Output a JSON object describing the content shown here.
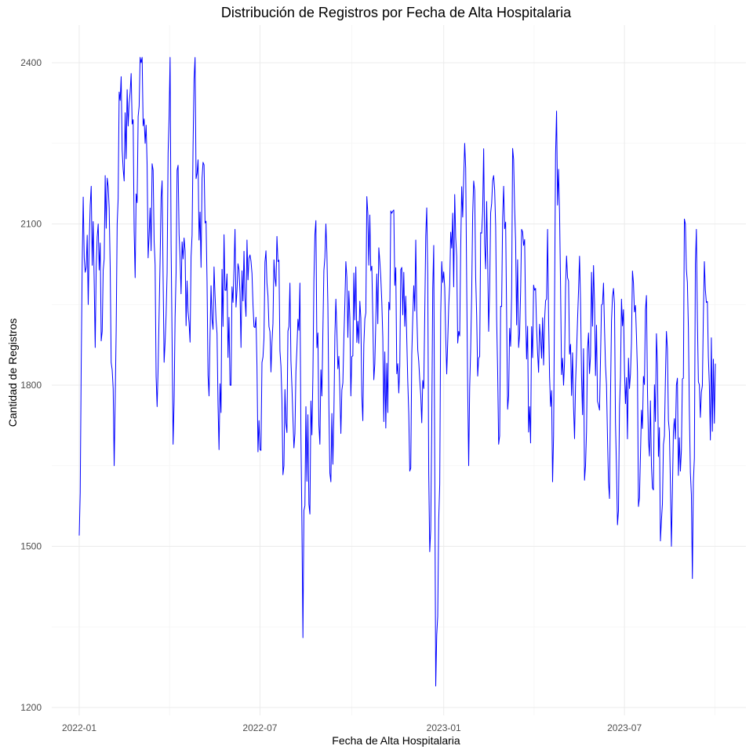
{
  "chart_data": {
    "type": "line",
    "title": "Distribución de Registros por Fecha de Alta Hospitalaria",
    "xlabel": "Fecha de Alta Hospitalaria",
    "ylabel": "Cantidad de Registros",
    "x_range": [
      "2022-01-01",
      "2023-09-30"
    ],
    "x_tick_labels": [
      "2022-01",
      "2022-07",
      "2023-01",
      "2023-07"
    ],
    "x_tick_dates": [
      "2022-01-01",
      "2022-07-01",
      "2023-01-01",
      "2023-07-01"
    ],
    "ylim": [
      1200,
      2420
    ],
    "y_ticks": [
      1200,
      1500,
      1800,
      2100,
      2400
    ],
    "grid": true,
    "series_color": "#0000ff",
    "series": [
      {
        "frequency": "daily",
        "start": "2022-01-01",
        "end": "2023-09-30",
        "keypoints": [
          [
            "2022-01-01",
            1520
          ],
          [
            "2022-01-02",
            1600
          ],
          [
            "2022-01-03",
            1840
          ],
          [
            "2022-01-05",
            2150
          ],
          [
            "2022-01-07",
            2010
          ],
          [
            "2022-01-10",
            1950
          ],
          [
            "2022-01-13",
            2170
          ],
          [
            "2022-01-17",
            1870
          ],
          [
            "2022-01-20",
            2100
          ],
          [
            "2022-01-24",
            1900
          ],
          [
            "2022-01-27",
            2190
          ],
          [
            "2022-02-01",
            2020
          ],
          [
            "2022-02-05",
            1650
          ],
          [
            "2022-02-08",
            2100
          ],
          [
            "2022-02-11",
            2330
          ],
          [
            "2022-02-15",
            2180
          ],
          [
            "2022-02-18",
            2350
          ],
          [
            "2022-02-22",
            2380
          ],
          [
            "2022-02-26",
            2000
          ],
          [
            "2022-03-01",
            2300
          ],
          [
            "2022-03-04",
            2400
          ],
          [
            "2022-03-08",
            2250
          ],
          [
            "2022-03-12",
            2080
          ],
          [
            "2022-03-16",
            2200
          ],
          [
            "2022-03-20",
            1760
          ],
          [
            "2022-03-24",
            2150
          ],
          [
            "2022-03-28",
            1880
          ],
          [
            "2022-04-01",
            2300
          ],
          [
            "2022-04-02",
            2410
          ],
          [
            "2022-04-05",
            1690
          ],
          [
            "2022-04-09",
            2200
          ],
          [
            "2022-04-13",
            1970
          ],
          [
            "2022-04-17",
            2050
          ],
          [
            "2022-04-22",
            1880
          ],
          [
            "2022-04-26",
            2370
          ],
          [
            "2022-05-01",
            2070
          ],
          [
            "2022-05-06",
            2210
          ],
          [
            "2022-05-11",
            1780
          ],
          [
            "2022-05-16",
            2020
          ],
          [
            "2022-05-21",
            1680
          ],
          [
            "2022-05-26",
            2080
          ],
          [
            "2022-06-01",
            1800
          ],
          [
            "2022-06-06",
            2090
          ],
          [
            "2022-06-12",
            1870
          ],
          [
            "2022-06-18",
            2070
          ],
          [
            "2022-06-24",
            1950
          ],
          [
            "2022-07-01",
            1680
          ],
          [
            "2022-07-07",
            2050
          ],
          [
            "2022-07-13",
            1880
          ],
          [
            "2022-07-19",
            2030
          ],
          [
            "2022-07-25",
            1650
          ],
          [
            "2022-07-31",
            1990
          ],
          [
            "2022-08-05",
            1710
          ],
          [
            "2022-08-10",
            1990
          ],
          [
            "2022-08-13",
            1330
          ],
          [
            "2022-08-16",
            1760
          ],
          [
            "2022-08-20",
            1560
          ],
          [
            "2022-08-25",
            2080
          ],
          [
            "2022-08-30",
            1690
          ],
          [
            "2022-09-05",
            2100
          ],
          [
            "2022-09-10",
            1620
          ],
          [
            "2022-09-15",
            1960
          ],
          [
            "2022-09-20",
            1710
          ],
          [
            "2022-09-25",
            2030
          ],
          [
            "2022-09-30",
            1780
          ],
          [
            "2022-10-05",
            2020
          ],
          [
            "2022-10-11",
            1780
          ],
          [
            "2022-10-17",
            2120
          ],
          [
            "2022-10-23",
            1810
          ],
          [
            "2022-10-29",
            2030
          ],
          [
            "2022-11-04",
            1720
          ],
          [
            "2022-11-10",
            2120
          ],
          [
            "2022-11-16",
            1840
          ],
          [
            "2022-11-22",
            2010
          ],
          [
            "2022-11-28",
            1640
          ],
          [
            "2022-12-04",
            2070
          ],
          [
            "2022-12-10",
            1730
          ],
          [
            "2022-12-15",
            2130
          ],
          [
            "2022-12-18",
            1490
          ],
          [
            "2022-12-22",
            2060
          ],
          [
            "2022-12-24",
            1240
          ],
          [
            "2022-12-26",
            1370
          ],
          [
            "2022-12-30",
            2030
          ],
          [
            "2023-01-05",
            1880
          ],
          [
            "2023-01-10",
            2120
          ],
          [
            "2023-01-16",
            1900
          ],
          [
            "2023-01-22",
            2250
          ],
          [
            "2023-01-26",
            1650
          ],
          [
            "2023-01-31",
            2180
          ],
          [
            "2023-02-05",
            1850
          ],
          [
            "2023-02-10",
            2240
          ],
          [
            "2023-02-15",
            1900
          ],
          [
            "2023-02-20",
            2190
          ],
          [
            "2023-02-25",
            1690
          ],
          [
            "2023-03-02",
            2170
          ],
          [
            "2023-03-07",
            1780
          ],
          [
            "2023-03-12",
            2220
          ],
          [
            "2023-03-17",
            1870
          ],
          [
            "2023-03-22",
            2060
          ],
          [
            "2023-03-28",
            1760
          ],
          [
            "2023-04-03",
            1980
          ],
          [
            "2023-04-09",
            1850
          ],
          [
            "2023-04-15",
            2090
          ],
          [
            "2023-04-20",
            1620
          ],
          [
            "2023-04-24",
            2310
          ],
          [
            "2023-04-30",
            1850
          ],
          [
            "2023-05-05",
            2000
          ],
          [
            "2023-05-11",
            1760
          ],
          [
            "2023-05-17",
            2040
          ],
          [
            "2023-05-23",
            1650
          ],
          [
            "2023-05-29",
            2010
          ],
          [
            "2023-06-04",
            1770
          ],
          [
            "2023-06-10",
            1990
          ],
          [
            "2023-06-15",
            1620
          ],
          [
            "2023-06-20",
            1980
          ],
          [
            "2023-06-24",
            1540
          ],
          [
            "2023-06-28",
            1960
          ],
          [
            "2023-07-04",
            1700
          ],
          [
            "2023-07-10",
            1990
          ],
          [
            "2023-07-16",
            1590
          ],
          [
            "2023-07-22",
            1940
          ],
          [
            "2023-07-28",
            1650
          ],
          [
            "2023-08-03",
            1840
          ],
          [
            "2023-08-06",
            1510
          ],
          [
            "2023-08-12",
            1900
          ],
          [
            "2023-08-17",
            1500
          ],
          [
            "2023-08-22",
            1800
          ],
          [
            "2023-08-26",
            1640
          ],
          [
            "2023-08-31",
            2100
          ],
          [
            "2023-09-04",
            1750
          ],
          [
            "2023-09-07",
            1440
          ],
          [
            "2023-09-11",
            2090
          ],
          [
            "2023-09-15",
            1740
          ],
          [
            "2023-09-19",
            2030
          ],
          [
            "2023-09-24",
            1800
          ],
          [
            "2023-09-30",
            1840
          ]
        ]
      }
    ]
  }
}
